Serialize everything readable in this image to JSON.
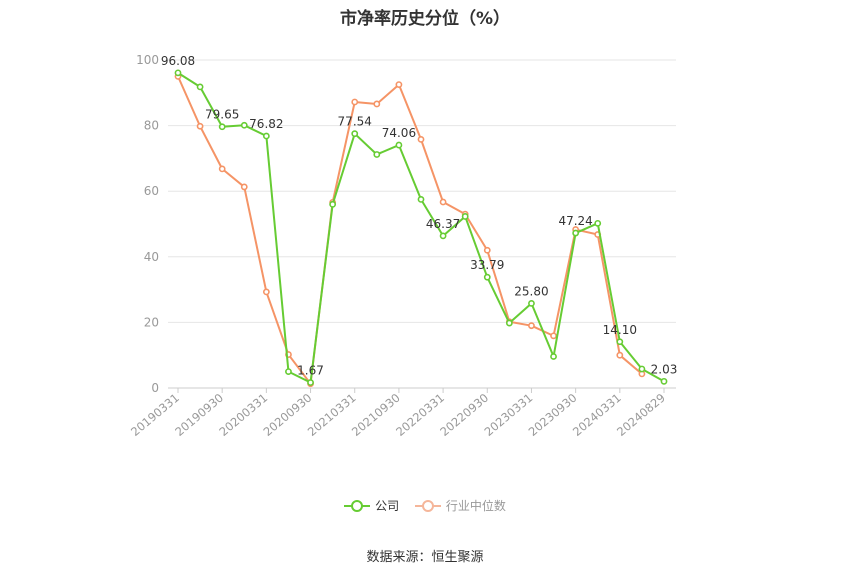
{
  "title": "市净率历史分位（%）",
  "source": "数据来源：恒生聚源",
  "colors": {
    "company": "#66cc33",
    "industry": "#f59466",
    "grid": "#e6e6e6",
    "axis": "#999999",
    "tick_text": "#999999"
  },
  "chart_data": {
    "type": "line",
    "title": "市净率历史分位（%）",
    "ylim": [
      0,
      100
    ],
    "yticks": [
      0,
      20,
      40,
      60,
      80,
      100
    ],
    "x": [
      "20190331",
      "20190630",
      "20190930",
      "20191231",
      "20200331",
      "20200630",
      "20200930",
      "20201231",
      "20210331",
      "20210630",
      "20210930",
      "20211231",
      "20220331",
      "20220630",
      "20220930",
      "20221231",
      "20230331",
      "20230630",
      "20230930",
      "20231231",
      "20240331",
      "20240630",
      "20240829"
    ],
    "x_tick_labels": [
      "20190331",
      "20190930",
      "20200331",
      "20200930",
      "20210331",
      "20210930",
      "20220331",
      "20220930",
      "20230331",
      "20230930",
      "20240331",
      "20240829"
    ],
    "grid": true,
    "legend_position": "bottom",
    "series": [
      {
        "name": "公司",
        "color": "#66cc33",
        "values": [
          96.08,
          91.8,
          79.65,
          80.1,
          76.82,
          5.0,
          1.67,
          56.0,
          77.54,
          71.2,
          74.06,
          57.5,
          46.37,
          52.3,
          33.79,
          19.8,
          25.8,
          9.6,
          47.24,
          50.2,
          14.1,
          5.8,
          2.03
        ],
        "labeled_points": {
          "0": "96.08",
          "2": "79.65",
          "4": "76.82",
          "6": "1.67",
          "8": "77.54",
          "10": "74.06",
          "12": "46.37",
          "14": "33.79",
          "16": "25.80",
          "18": "47.24",
          "20": "14.10",
          "22": "2.03"
        }
      },
      {
        "name": "行业中位数",
        "color": "#f59466",
        "values": [
          95.0,
          79.8,
          66.8,
          61.3,
          29.3,
          10.2,
          1.3,
          56.6,
          87.2,
          86.6,
          92.5,
          75.8,
          56.7,
          53.0,
          42.0,
          20.2,
          19.0,
          15.9,
          48.3,
          46.8,
          10.0,
          4.3,
          null
        ]
      }
    ]
  }
}
